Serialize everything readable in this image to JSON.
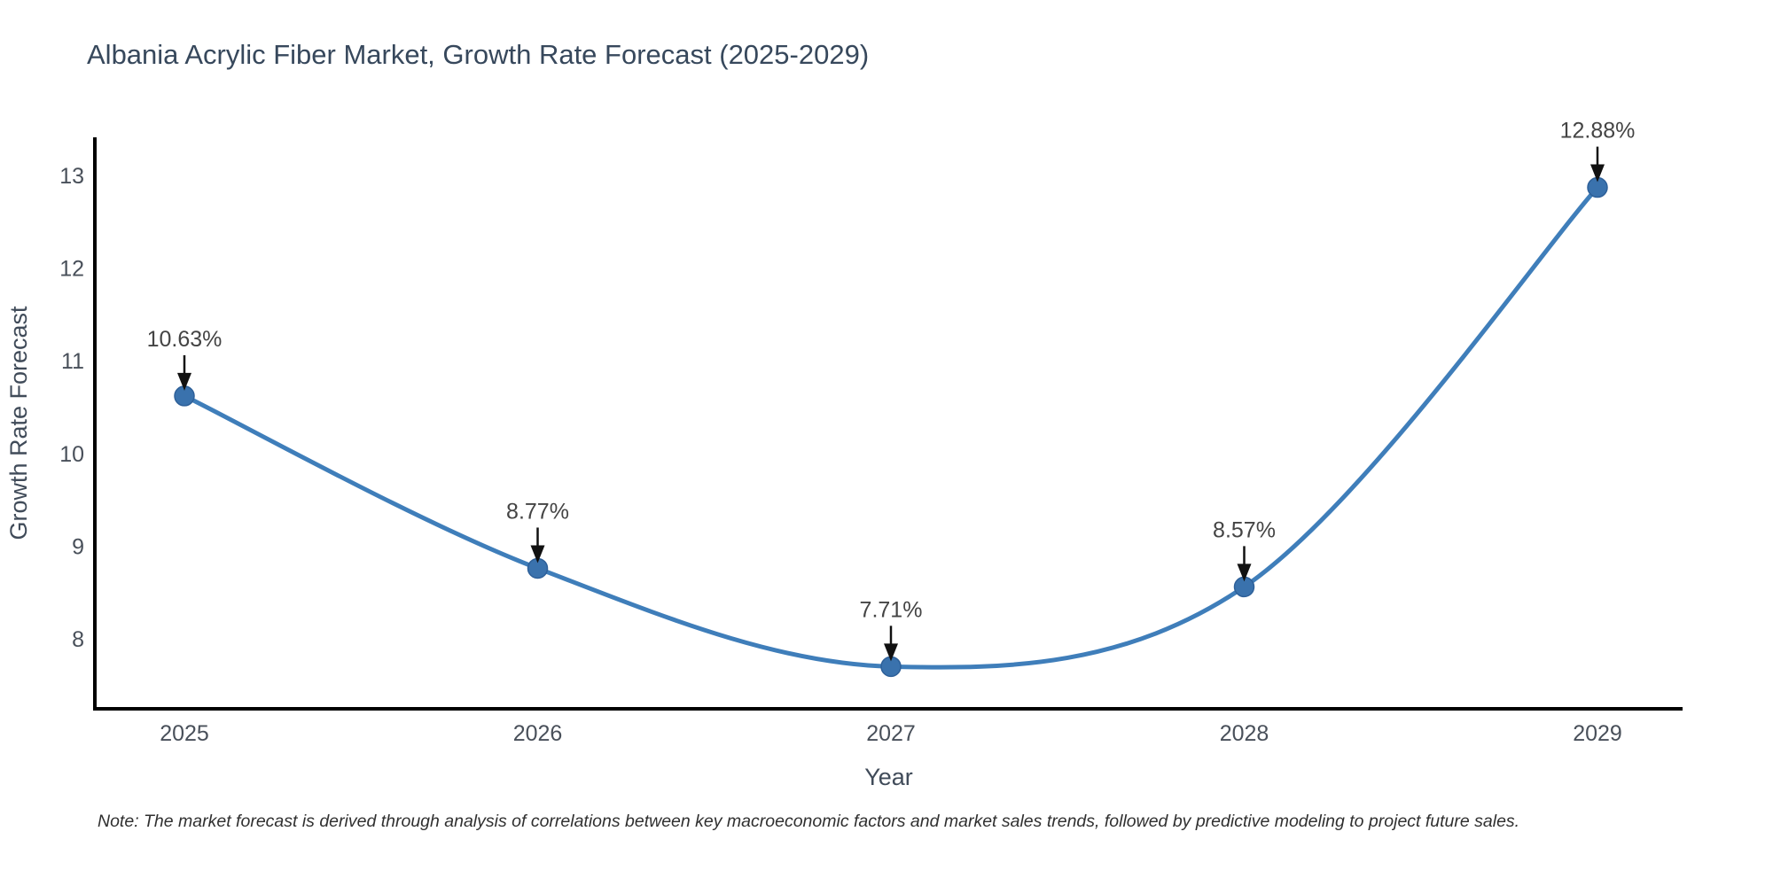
{
  "title": "Albania Acrylic Fiber Market, Growth Rate Forecast (2025-2029)",
  "note": "Note: The market forecast is derived through analysis of correlations between key macroeconomic factors and market sales trends, followed by predictive modeling to project future sales.",
  "chart_data": {
    "type": "line",
    "title": "Albania Acrylic Fiber Market, Growth Rate Forecast (2025-2029)",
    "x": [
      2025,
      2026,
      2027,
      2028,
      2029
    ],
    "y": [
      10.63,
      8.77,
      7.71,
      8.57,
      12.88
    ],
    "point_labels": [
      "10.63%",
      "8.77%",
      "7.71%",
      "8.57%",
      "12.88%"
    ],
    "xlabel": "Year",
    "ylabel": "Growth Rate Forecast",
    "x_tick_labels": [
      "2025",
      "2026",
      "2027",
      "2028",
      "2029"
    ],
    "y_ticks": [
      8,
      9,
      10,
      11,
      12,
      13
    ],
    "ylim": [
      7.25,
      13.43
    ],
    "grid": false,
    "legend": "none",
    "curve_style": "smooth-spline",
    "marker": "circle",
    "annotations": "value labels with downward arrows above each point"
  },
  "colors": {
    "background": "#ffffff",
    "line": "#3f7eba",
    "marker_fill": "#3a72ad",
    "marker_edge": "#2e6099",
    "axis_line": "#000000",
    "arrow": "#111111",
    "title_text": "#37485c",
    "tick_text": "#49505a",
    "axis_title_text": "#404b59",
    "annotation_text": "#444444",
    "note_text": "#303030"
  }
}
